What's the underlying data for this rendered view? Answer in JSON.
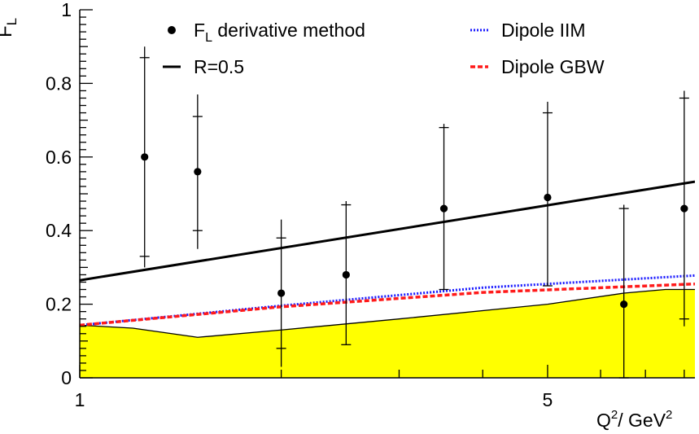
{
  "chart_data": {
    "type": "scatter",
    "ylabel_main": "F",
    "ylabel_sub": "L",
    "xlabel_q": "Q",
    "xlabel_sup1": "2",
    "xlabel_unit": "/ GeV",
    "xlabel_sup2": "2",
    "x_scale": "log",
    "xlim": [
      1,
      8.3
    ],
    "ylim": [
      0,
      1
    ],
    "x_tick_labels": [
      {
        "value": 1,
        "label": "1"
      },
      {
        "value": 5,
        "label": "5"
      }
    ],
    "x_minor_ticks": [
      2,
      3,
      4,
      6,
      7,
      8
    ],
    "y_tick_labels": [
      {
        "value": 0,
        "label": "0"
      },
      {
        "value": 0.2,
        "label": "0.2"
      },
      {
        "value": 0.4,
        "label": "0.4"
      },
      {
        "value": 0.6,
        "label": "0.6"
      },
      {
        "value": 0.8,
        "label": "0.8"
      },
      {
        "value": 1,
        "label": "1"
      }
    ],
    "legend": {
      "placement": "top",
      "entries": [
        {
          "key": "data",
          "marker": "dot",
          "main": "F",
          "sub": "L",
          "rest": " derivative method"
        },
        {
          "key": "r05",
          "marker": "solid-line",
          "main": "R=0.5",
          "sub": "",
          "rest": ""
        },
        {
          "key": "iim",
          "marker": "dotted-line",
          "main": "Dipole IIM",
          "sub": "",
          "rest": ""
        },
        {
          "key": "gbw",
          "marker": "dashed-line",
          "main": "Dipole GBW",
          "sub": "",
          "rest": ""
        }
      ]
    },
    "series": [
      {
        "key": "data",
        "kind": "points",
        "color": "#000000",
        "points": [
          {
            "x": 1.25,
            "y": 0.6,
            "stat_lo": 0.33,
            "stat_hi": 0.87,
            "tot_lo": 0.3,
            "tot_hi": 0.9
          },
          {
            "x": 1.5,
            "y": 0.56,
            "stat_lo": 0.4,
            "stat_hi": 0.71,
            "tot_lo": 0.35,
            "tot_hi": 0.77
          },
          {
            "x": 2.0,
            "y": 0.23,
            "stat_lo": 0.08,
            "stat_hi": 0.38,
            "tot_lo": 0.03,
            "tot_hi": 0.43
          },
          {
            "x": 2.5,
            "y": 0.28,
            "stat_lo": 0.09,
            "stat_hi": 0.47,
            "tot_lo": 0.09,
            "tot_hi": 0.48
          },
          {
            "x": 3.5,
            "y": 0.46,
            "stat_lo": 0.24,
            "stat_hi": 0.68,
            "tot_lo": 0.24,
            "tot_hi": 0.69
          },
          {
            "x": 5.0,
            "y": 0.49,
            "stat_lo": 0.25,
            "stat_hi": 0.72,
            "tot_lo": 0.25,
            "tot_hi": 0.75
          },
          {
            "x": 6.5,
            "y": 0.2,
            "stat_lo": 0.0,
            "stat_hi": 0.46,
            "tot_lo": 0.0,
            "tot_hi": 0.47
          },
          {
            "x": 8.0,
            "y": 0.46,
            "stat_lo": 0.16,
            "stat_hi": 0.76,
            "tot_lo": 0.14,
            "tot_hi": 0.78
          }
        ]
      },
      {
        "key": "r05",
        "kind": "line",
        "style": "solid",
        "color": "#000000",
        "x": [
          1,
          8.3
        ],
        "y": [
          0.265,
          0.533
        ]
      },
      {
        "key": "iim",
        "kind": "line",
        "style": "dotted",
        "color": "#1a1aff",
        "x": [
          1,
          2,
          4,
          8.3
        ],
        "y": [
          0.143,
          0.196,
          0.245,
          0.278
        ]
      },
      {
        "key": "gbw",
        "kind": "line",
        "style": "dashed",
        "color": "#ff1a1a",
        "x": [
          1,
          2,
          4,
          8.3
        ],
        "y": [
          0.143,
          0.193,
          0.232,
          0.255
        ]
      },
      {
        "key": "band",
        "kind": "area",
        "color": "#ffff00",
        "x": [
          1,
          1.2,
          1.5,
          2,
          3,
          5,
          6.5,
          7.5,
          8.3
        ],
        "y": [
          0.143,
          0.135,
          0.11,
          0.13,
          0.16,
          0.2,
          0.23,
          0.24,
          0.24
        ]
      }
    ]
  }
}
